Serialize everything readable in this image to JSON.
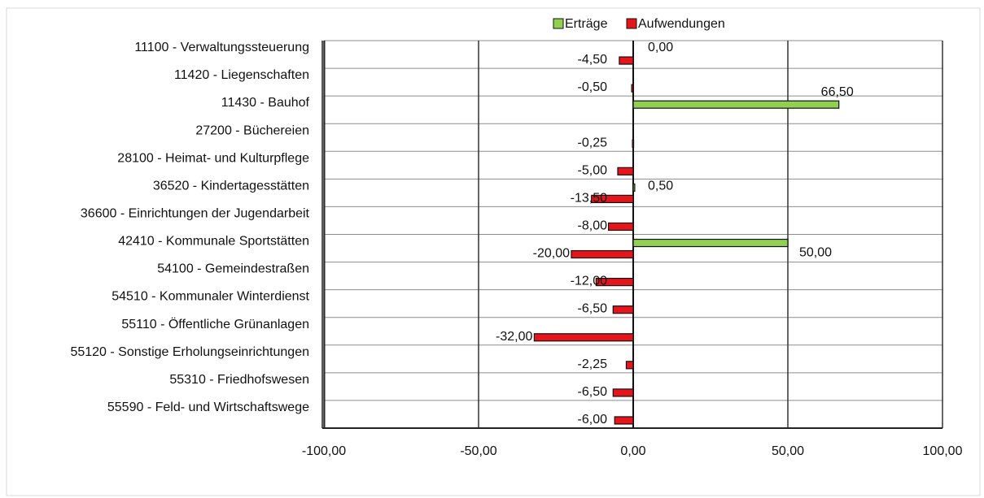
{
  "chart_data": {
    "type": "bar",
    "orientation": "horizontal",
    "categories": [
      "11100 - Verwaltungssteuerung",
      "11420 - Liegenschaften",
      "11430 - Bauhof",
      "27200 - Büchereien",
      "28100 - Heimat- und Kulturpflege",
      "36520 - Kindertagesstätten",
      "36600 - Einrichtungen der Jugendarbeit",
      "42410 - Kommunale Sportstätten",
      "54100 - Gemeindestraßen",
      "54510 - Kommunaler Winterdienst",
      "55110 - Öffentliche Grünanlagen",
      "55120 - Sonstige Erholungseinrichtungen",
      "55310 - Friedhofswesen",
      "55590 - Feld- und Wirtschaftswege"
    ],
    "series": [
      {
        "name": "Erträge",
        "color": "#92d050",
        "values": [
          0,
          null,
          66.5,
          null,
          null,
          0.5,
          null,
          50,
          null,
          null,
          null,
          null,
          null,
          null
        ],
        "labels": [
          "0,00",
          "",
          "66,50",
          "",
          "",
          "0,50",
          "",
          "50,00",
          "",
          "",
          "",
          "",
          "",
          ""
        ]
      },
      {
        "name": "Aufwendungen",
        "color": "#e8141c",
        "values": [
          -4.5,
          -0.5,
          null,
          -0.25,
          -5,
          -13.5,
          -8,
          -20,
          -12,
          -6.5,
          -32,
          -2.25,
          -6.5,
          -6
        ],
        "labels": [
          "-4,50",
          "-0,50",
          "",
          "-0,25",
          "-5,00",
          "-13,50",
          "-8,00",
          "-20,00",
          "-12,00",
          "-6,50",
          "-32,00",
          "-2,25",
          "-6,50",
          "-6,00"
        ]
      }
    ],
    "xlim": [
      -100,
      100
    ],
    "x_ticks": [
      -100,
      -50,
      0,
      50,
      100
    ],
    "x_tick_labels": [
      "-100,00",
      "-50,00",
      "0,00",
      "50,00",
      "100,00"
    ],
    "grid": true,
    "legend_position": "top-center"
  }
}
